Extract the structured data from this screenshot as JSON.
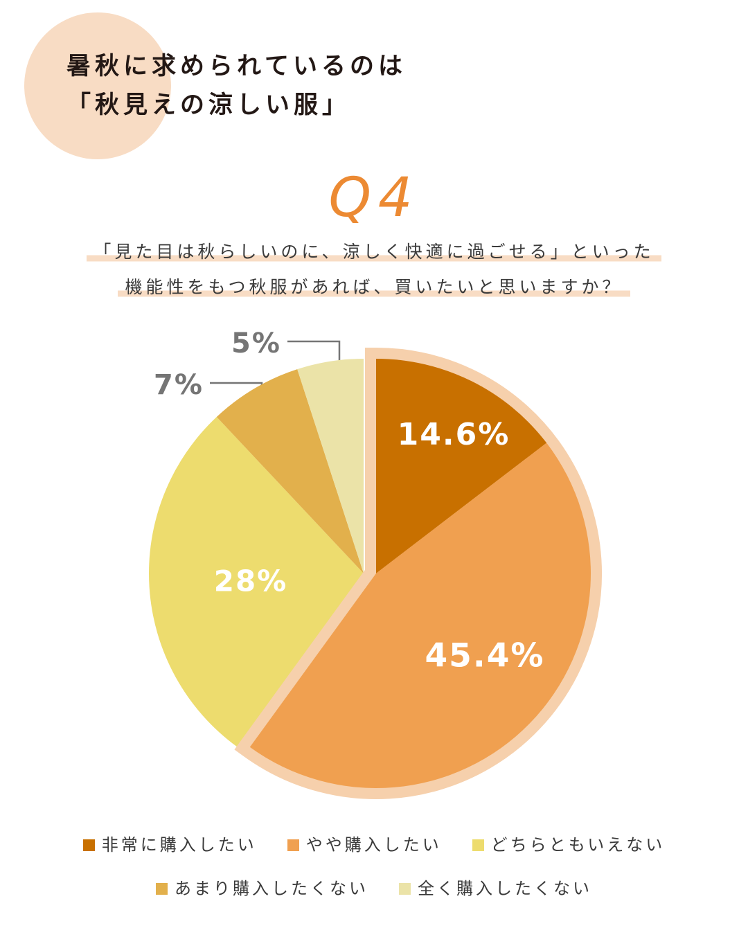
{
  "header": {
    "title_line1": "暑秋に求められているのは",
    "title_line2": "「秋見えの涼しい服」"
  },
  "question": {
    "number": "Q4",
    "line1": "「見た目は秋らしいのに、涼しく快適に過ごせる」といった",
    "line2": "機能性をもつ秋服があれば、買いたいと思いますか？"
  },
  "chart_data": {
    "type": "pie",
    "title": "Q4",
    "start": "12 o'clock, clockwise",
    "highlighted_slice": 1,
    "slices": [
      {
        "label": "非常に購入したい",
        "value": 14.6,
        "display": "14.6%",
        "color": "#c87000",
        "label_color": "#ffffff"
      },
      {
        "label": "やや購入したい",
        "value": 45.4,
        "display": "45.4%",
        "color": "#f0a050",
        "label_color": "#ffffff"
      },
      {
        "label": "どちらともいえない",
        "value": 28,
        "display": "28%",
        "color": "#eddc6e",
        "label_color": "#ffffff"
      },
      {
        "label": "あまり購入したくない",
        "value": 7,
        "display": "7%",
        "color": "#e2b04c",
        "label_color": "#757575"
      },
      {
        "label": "全く購入したくない",
        "value": 5,
        "display": "5%",
        "color": "#ebe3a8",
        "label_color": "#757575"
      }
    ],
    "highlight_outline_color": "#f6d0ac",
    "legend_position": "bottom"
  }
}
